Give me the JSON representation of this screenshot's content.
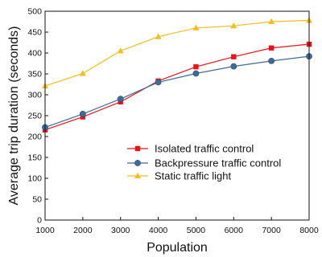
{
  "chart_data": {
    "type": "line",
    "title": "",
    "xlabel": "Population",
    "ylabel": "Average trip duration (seconds)",
    "xlim": [
      1000,
      8000
    ],
    "ylim": [
      0,
      500
    ],
    "x": [
      1000,
      2000,
      3000,
      4000,
      5000,
      6000,
      7000,
      8000
    ],
    "x_ticks": [
      1000,
      2000,
      3000,
      4000,
      5000,
      6000,
      7000,
      8000
    ],
    "y_ticks": [
      0,
      50,
      100,
      150,
      200,
      250,
      300,
      350,
      400,
      450,
      500
    ],
    "grid": false,
    "legend_position": "center-right",
    "series": [
      {
        "name": "Isolated traffic control",
        "color": "#e8131a",
        "marker": "square",
        "values": [
          216,
          247,
          283,
          333,
          367,
          391,
          412,
          421
        ]
      },
      {
        "name": "Backpressure traffic control",
        "color": "#3e6a96",
        "marker": "circle",
        "values": [
          222,
          254,
          290,
          330,
          351,
          368,
          381,
          392
        ]
      },
      {
        "name": "Static traffic light",
        "color": "#f5bd1f",
        "marker": "triangle",
        "values": [
          321,
          351,
          405,
          439,
          460,
          465,
          475,
          478
        ]
      }
    ]
  }
}
